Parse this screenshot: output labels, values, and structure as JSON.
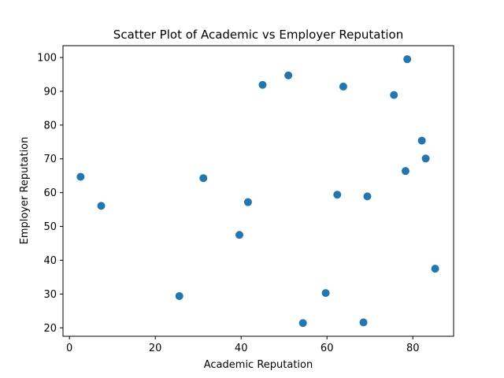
{
  "chart_data": {
    "type": "scatter",
    "title": "Scatter Plot of Academic vs Employer Reputation",
    "xlabel": "Academic Reputation",
    "ylabel": "Employer Reputation",
    "xlim": [
      -1.5,
      89.5
    ],
    "ylim": [
      17.5,
      103.5
    ],
    "xticks": [
      0,
      20,
      40,
      60,
      80
    ],
    "yticks": [
      20,
      30,
      40,
      50,
      60,
      70,
      80,
      90,
      100
    ],
    "grid": false,
    "color": "#1f77b4",
    "points": [
      {
        "x": 2.6,
        "y": 64.7
      },
      {
        "x": 7.4,
        "y": 56.1
      },
      {
        "x": 25.6,
        "y": 29.4
      },
      {
        "x": 31.2,
        "y": 64.3
      },
      {
        "x": 39.6,
        "y": 47.5
      },
      {
        "x": 41.6,
        "y": 57.2
      },
      {
        "x": 45.0,
        "y": 91.9
      },
      {
        "x": 51.0,
        "y": 94.7
      },
      {
        "x": 54.4,
        "y": 21.4
      },
      {
        "x": 59.7,
        "y": 30.3
      },
      {
        "x": 62.4,
        "y": 59.4
      },
      {
        "x": 63.8,
        "y": 91.4
      },
      {
        "x": 68.5,
        "y": 21.6
      },
      {
        "x": 69.4,
        "y": 58.9
      },
      {
        "x": 75.6,
        "y": 88.9
      },
      {
        "x": 78.3,
        "y": 66.4
      },
      {
        "x": 78.7,
        "y": 99.5
      },
      {
        "x": 82.1,
        "y": 75.4
      },
      {
        "x": 83.0,
        "y": 70.1
      },
      {
        "x": 85.2,
        "y": 37.5
      }
    ]
  }
}
